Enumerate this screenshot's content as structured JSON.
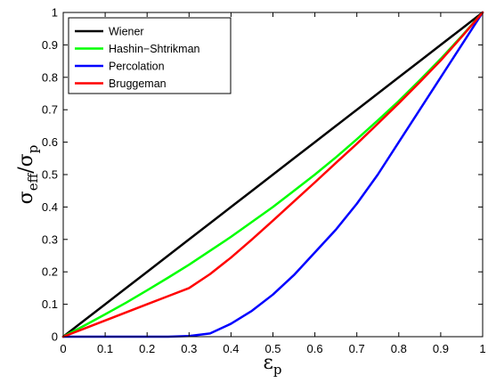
{
  "chart_data": {
    "type": "line",
    "xlabel": {
      "main": "ε",
      "sub": "p"
    },
    "ylabel": {
      "main": "σ",
      "sub1": "eff",
      "sep": "/σ",
      "sub2": "p"
    },
    "xlim": [
      0,
      1
    ],
    "ylim": [
      0,
      1
    ],
    "xticks": [
      "0",
      "0.1",
      "0.2",
      "0.3",
      "0.4",
      "0.5",
      "0.6",
      "0.7",
      "0.8",
      "0.9",
      "1"
    ],
    "yticks": [
      "0",
      "0.1",
      "0.2",
      "0.3",
      "0.4",
      "0.5",
      "0.6",
      "0.7",
      "0.8",
      "0.9",
      "1"
    ],
    "grid": false,
    "legend_position": "top-left",
    "x": [
      0,
      0.05,
      0.1,
      0.15,
      0.2,
      0.25,
      0.3,
      0.35,
      0.4,
      0.45,
      0.5,
      0.55,
      0.6,
      0.65,
      0.7,
      0.75,
      0.8,
      0.85,
      0.9,
      0.95,
      1
    ],
    "series": [
      {
        "name": "Wiener",
        "color": "#000000",
        "values": [
          0,
          0.05,
          0.1,
          0.15,
          0.2,
          0.25,
          0.3,
          0.35,
          0.4,
          0.45,
          0.5,
          0.55,
          0.6,
          0.65,
          0.7,
          0.75,
          0.8,
          0.85,
          0.9,
          0.95,
          1
        ]
      },
      {
        "name": "Hashin−Shtrikman",
        "color": "#00ff00",
        "values": [
          0,
          0.034,
          0.069,
          0.105,
          0.143,
          0.182,
          0.222,
          0.265,
          0.308,
          0.354,
          0.4,
          0.45,
          0.5,
          0.553,
          0.609,
          0.667,
          0.727,
          0.791,
          0.857,
          0.927,
          1
        ]
      },
      {
        "name": "Percolation",
        "color": "#0000ff",
        "values": [
          0,
          0,
          0,
          0,
          0,
          0,
          0.002,
          0.01,
          0.04,
          0.08,
          0.13,
          0.19,
          0.26,
          0.33,
          0.41,
          0.5,
          0.6,
          0.7,
          0.8,
          0.9,
          1
        ]
      },
      {
        "name": "Bruggeman",
        "color": "#ff0000",
        "values": [
          0,
          0.025,
          0.05,
          0.075,
          0.1,
          0.125,
          0.15,
          0.193,
          0.244,
          0.3,
          0.358,
          0.417,
          0.476,
          0.536,
          0.595,
          0.657,
          0.72,
          0.785,
          0.852,
          0.925,
          1
        ]
      }
    ]
  }
}
